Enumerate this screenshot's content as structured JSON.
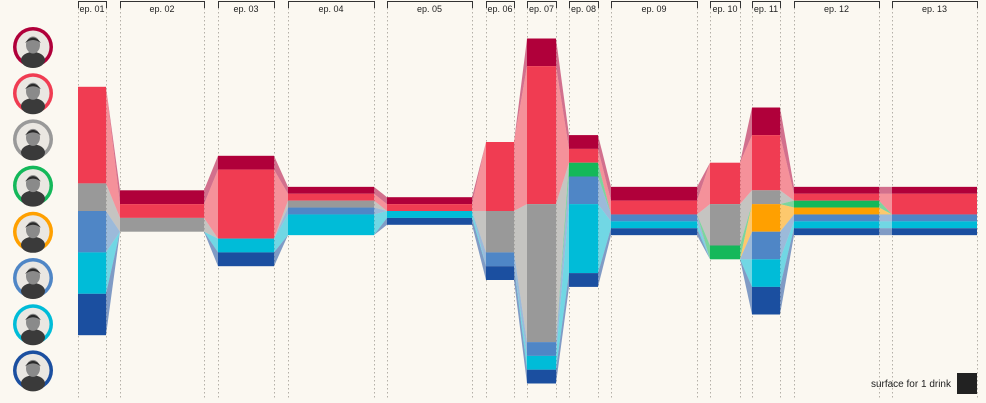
{
  "chart_data": {
    "type": "area",
    "episodes": [
      "ep. 01",
      "ep. 02",
      "ep. 03",
      "ep. 04",
      "ep. 05",
      "ep. 06",
      "ep. 07",
      "ep. 08",
      "ep. 09",
      "ep. 10",
      "ep. 11",
      "ep. 12",
      "ep. 13"
    ],
    "characters": [
      {
        "id": "c1",
        "color": "#b0003a"
      },
      {
        "id": "c2",
        "color": "#f03c52"
      },
      {
        "id": "c3",
        "color": "#999999"
      },
      {
        "id": "c4",
        "color": "#14b85a"
      },
      {
        "id": "c5",
        "color": "#ffa000"
      },
      {
        "id": "c6",
        "color": "#4f86c6"
      },
      {
        "id": "c7",
        "color": "#00bcd8"
      },
      {
        "id": "c8",
        "color": "#1b4fa0"
      }
    ],
    "drinks": [
      [
        0,
        7,
        2,
        0,
        0,
        3,
        3,
        3
      ],
      [
        1,
        1,
        1,
        0,
        0,
        0,
        0,
        0
      ],
      [
        1,
        5,
        0,
        0,
        0,
        0,
        1,
        1
      ],
      [
        0.5,
        0.5,
        0.5,
        0,
        0,
        0.5,
        1.5,
        0
      ],
      [
        0.5,
        0.5,
        0,
        0,
        0,
        0,
        0.5,
        0.5
      ],
      [
        0,
        5,
        3,
        0,
        0,
        1,
        0,
        1
      ],
      [
        2,
        10,
        10,
        0,
        0,
        1,
        1,
        1
      ],
      [
        1,
        1,
        0,
        1,
        0,
        2,
        5,
        1
      ],
      [
        1,
        1,
        0,
        0,
        0,
        0.5,
        0.5,
        0.5
      ],
      [
        0,
        3,
        3,
        1,
        0,
        0,
        0,
        0
      ],
      [
        2,
        4,
        1,
        0,
        2,
        2,
        2,
        2
      ],
      [
        0.5,
        0.5,
        0,
        0.5,
        0.5,
        0.5,
        0.5,
        0.5
      ],
      [
        0.5,
        1.5,
        0,
        0,
        0,
        0.5,
        0.5,
        0.5
      ]
    ],
    "legend_label": "surface for 1 drink"
  }
}
